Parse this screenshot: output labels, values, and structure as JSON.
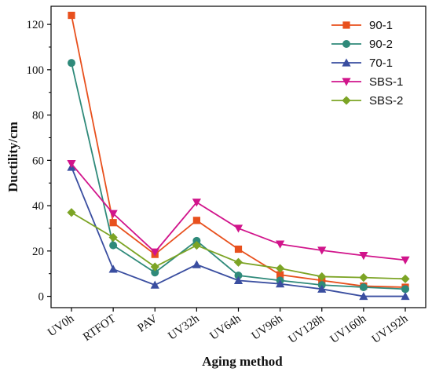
{
  "chart_data": {
    "type": "line",
    "xlabel": "Aging method",
    "ylabel": "Ductility/cm",
    "categories": [
      "UV0h",
      "RTFOT",
      "PAV",
      "UV32h",
      "UV64h",
      "UV96h",
      "UV128h",
      "UV160h",
      "UV192h"
    ],
    "ylim": [
      -5,
      128
    ],
    "yticks": [
      0,
      20,
      40,
      60,
      80,
      100,
      120
    ],
    "grid": false,
    "legend_position": "top-right",
    "series": [
      {
        "name": "90-1",
        "color": "#e8501d",
        "marker": "square",
        "values": [
          124,
          32.5,
          18.5,
          33.5,
          20.8,
          9.5,
          7,
          4.5,
          4
        ]
      },
      {
        "name": "90-2",
        "color": "#2f8a7a",
        "marker": "circle",
        "values": [
          103,
          22.5,
          10.5,
          24.5,
          9.2,
          7,
          5,
          4,
          3.2
        ]
      },
      {
        "name": "70-1",
        "color": "#3a4ea0",
        "marker": "triangle-up",
        "values": [
          57,
          12,
          5,
          14,
          7,
          5.5,
          3.2,
          0,
          0
        ]
      },
      {
        "name": "SBS-1",
        "color": "#d1148b",
        "marker": "triangle-down",
        "values": [
          58.5,
          36.5,
          19.5,
          41.5,
          30,
          23,
          20.3,
          18,
          16
        ]
      },
      {
        "name": "SBS-2",
        "color": "#7ca425",
        "marker": "diamond",
        "values": [
          37,
          26,
          13,
          22.5,
          15,
          12.3,
          8.7,
          8.3,
          7.7
        ]
      }
    ]
  }
}
